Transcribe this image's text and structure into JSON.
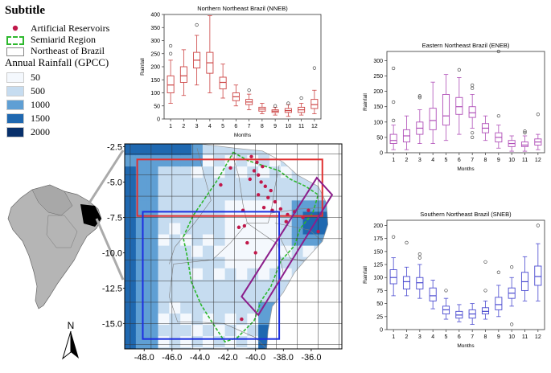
{
  "legend": {
    "title": "Subtitle",
    "items": [
      {
        "label": "Artificial Reservoirs",
        "color": "#c0184a"
      },
      {
        "label": "Semiarid Region",
        "color": "#2db82d"
      },
      {
        "label": "Northeast of Brazil",
        "color": "#888888"
      }
    ],
    "rainfall_title": "Annual Rainfall (GPCC)",
    "rainfall_classes": [
      {
        "label": "50",
        "color": "#f4f8fd"
      },
      {
        "label": "500",
        "color": "#c6dcf0"
      },
      {
        "label": "1000",
        "color": "#5f9fd4"
      },
      {
        "label": "1500",
        "color": "#1f68b0"
      },
      {
        "label": "2000",
        "color": "#08306b"
      }
    ]
  },
  "map": {
    "x_ticks": [
      "-48.0",
      "-46.0",
      "-44.0",
      "-42.0",
      "-40.0",
      "-38.0",
      "-36.0"
    ],
    "y_ticks": [
      "-2.5",
      "-5.0",
      "-7.5",
      "-10.0",
      "-12.5",
      "-15.0"
    ],
    "north_label": "N",
    "regions": [
      {
        "name": "NNEB",
        "color": "#e03030"
      },
      {
        "name": "SNEB",
        "color": "#1c2fe0"
      },
      {
        "name": "ENEB",
        "color": "#8b1e8b"
      }
    ]
  },
  "chart_data": [
    {
      "type": "box",
      "title": "Northern Northeast Brazil (NNEB)",
      "xlabel": "Months",
      "ylabel": "Rainfall",
      "color": "#cc4444",
      "categories": [
        "1",
        "2",
        "3",
        "4",
        "5",
        "6",
        "7",
        "8",
        "9",
        "10",
        "11",
        "12"
      ],
      "ylim": [
        0,
        400
      ],
      "yticks": [
        0,
        50,
        100,
        150,
        200,
        250,
        300,
        350,
        400
      ],
      "boxes": [
        {
          "whislo": 60,
          "q1": 100,
          "med": 130,
          "q3": 165,
          "whishi": 225,
          "fliers": [
            250,
            280
          ]
        },
        {
          "whislo": 90,
          "q1": 140,
          "med": 165,
          "q3": 200,
          "whishi": 265,
          "fliers": []
        },
        {
          "whislo": 130,
          "q1": 195,
          "med": 225,
          "q3": 255,
          "whishi": 320,
          "fliers": [
            360
          ]
        },
        {
          "whislo": 100,
          "q1": 175,
          "med": 215,
          "q3": 255,
          "whishi": 395,
          "fliers": []
        },
        {
          "whislo": 80,
          "q1": 115,
          "med": 140,
          "q3": 160,
          "whishi": 210,
          "fliers": []
        },
        {
          "whislo": 50,
          "q1": 70,
          "med": 85,
          "q3": 100,
          "whishi": 130,
          "fliers": []
        },
        {
          "whislo": 35,
          "q1": 55,
          "med": 65,
          "q3": 75,
          "whishi": 95,
          "fliers": [
            110
          ]
        },
        {
          "whislo": 20,
          "q1": 30,
          "med": 38,
          "q3": 45,
          "whishi": 60,
          "fliers": []
        },
        {
          "whislo": 15,
          "q1": 25,
          "med": 30,
          "q3": 35,
          "whishi": 45,
          "fliers": [
            50
          ]
        },
        {
          "whislo": 10,
          "q1": 25,
          "med": 32,
          "q3": 40,
          "whishi": 55,
          "fliers": [
            60
          ]
        },
        {
          "whislo": 15,
          "q1": 25,
          "med": 35,
          "q3": 45,
          "whishi": 60,
          "fliers": [
            80
          ]
        },
        {
          "whislo": 20,
          "q1": 40,
          "med": 55,
          "q3": 75,
          "whishi": 110,
          "fliers": [
            195
          ]
        }
      ]
    },
    {
      "type": "box",
      "title": "Eastern Northeast Brazil (ENEB)",
      "xlabel": "Months",
      "ylabel": "Rainfall",
      "color": "#b04fb8",
      "categories": [
        "1",
        "2",
        "3",
        "4",
        "5",
        "6",
        "7",
        "8",
        "9",
        "10",
        "11",
        "12"
      ],
      "ylim": [
        0,
        330
      ],
      "yticks": [
        0,
        50,
        100,
        150,
        200,
        250,
        300
      ],
      "boxes": [
        {
          "whislo": 10,
          "q1": 30,
          "med": 40,
          "q3": 60,
          "whishi": 90,
          "fliers": [
            105,
            165,
            275
          ]
        },
        {
          "whislo": 10,
          "q1": 35,
          "med": 55,
          "q3": 75,
          "whishi": 120,
          "fliers": []
        },
        {
          "whislo": 30,
          "q1": 60,
          "med": 80,
          "q3": 100,
          "whishi": 140,
          "fliers": [
            180,
            185
          ]
        },
        {
          "whislo": 30,
          "q1": 75,
          "med": 105,
          "q3": 145,
          "whishi": 230,
          "fliers": []
        },
        {
          "whislo": 40,
          "q1": 90,
          "med": 120,
          "q3": 190,
          "whishi": 255,
          "fliers": []
        },
        {
          "whislo": 60,
          "q1": 125,
          "med": 150,
          "q3": 180,
          "whishi": 245,
          "fliers": [
            270
          ]
        },
        {
          "whislo": 80,
          "q1": 115,
          "med": 130,
          "q3": 150,
          "whishi": 190,
          "fliers": [
            50,
            65,
            210,
            220
          ]
        },
        {
          "whislo": 40,
          "q1": 65,
          "med": 80,
          "q3": 95,
          "whishi": 120,
          "fliers": []
        },
        {
          "whislo": 15,
          "q1": 35,
          "med": 50,
          "q3": 65,
          "whishi": 90,
          "fliers": [
            120,
            330
          ]
        },
        {
          "whislo": 5,
          "q1": 20,
          "med": 30,
          "q3": 40,
          "whishi": 55,
          "fliers": []
        },
        {
          "whislo": 5,
          "q1": 20,
          "med": 25,
          "q3": 35,
          "whishi": 55,
          "fliers": [
            65,
            70
          ]
        },
        {
          "whislo": 10,
          "q1": 25,
          "med": 35,
          "q3": 45,
          "whishi": 60,
          "fliers": [
            125
          ]
        }
      ]
    },
    {
      "type": "box",
      "title": "Southern Northeast Brazil (SNEB)",
      "xlabel": "Months",
      "ylabel": "Rainfall",
      "color": "#4a4ad0",
      "categories": [
        "1",
        "2",
        "3",
        "4",
        "5",
        "6",
        "7",
        "8",
        "9",
        "10",
        "11",
        "12"
      ],
      "ylim": [
        0,
        210
      ],
      "yticks": [
        0,
        25,
        50,
        75,
        100,
        125,
        150,
        175,
        200
      ],
      "boxes": [
        {
          "whislo": 65,
          "q1": 88,
          "med": 100,
          "q3": 115,
          "whishi": 138,
          "fliers": [
            178
          ]
        },
        {
          "whislo": 65,
          "q1": 78,
          "med": 92,
          "q3": 102,
          "whishi": 120,
          "fliers": [
            167
          ]
        },
        {
          "whislo": 60,
          "q1": 78,
          "med": 90,
          "q3": 100,
          "whishi": 125,
          "fliers": [
            138,
            145
          ]
        },
        {
          "whislo": 40,
          "q1": 55,
          "med": 65,
          "q3": 80,
          "whishi": 95,
          "fliers": []
        },
        {
          "whislo": 20,
          "q1": 30,
          "med": 38,
          "q3": 45,
          "whishi": 60,
          "fliers": [
            75
          ]
        },
        {
          "whislo": 15,
          "q1": 22,
          "med": 28,
          "q3": 35,
          "whishi": 48,
          "fliers": []
        },
        {
          "whislo": 10,
          "q1": 22,
          "med": 30,
          "q3": 38,
          "whishi": 50,
          "fliers": []
        },
        {
          "whislo": 20,
          "q1": 30,
          "med": 35,
          "q3": 42,
          "whishi": 55,
          "fliers": [
            75,
            130
          ]
        },
        {
          "whislo": 25,
          "q1": 38,
          "med": 48,
          "q3": 62,
          "whishi": 85,
          "fliers": [
            110
          ]
        },
        {
          "whislo": 45,
          "q1": 60,
          "med": 70,
          "q3": 80,
          "whishi": 100,
          "fliers": [
            10,
            120
          ]
        },
        {
          "whislo": 55,
          "q1": 75,
          "med": 92,
          "q3": 110,
          "whishi": 140,
          "fliers": []
        },
        {
          "whislo": 55,
          "q1": 85,
          "med": 102,
          "q3": 122,
          "whishi": 165,
          "fliers": [
            200
          ]
        }
      ]
    }
  ]
}
